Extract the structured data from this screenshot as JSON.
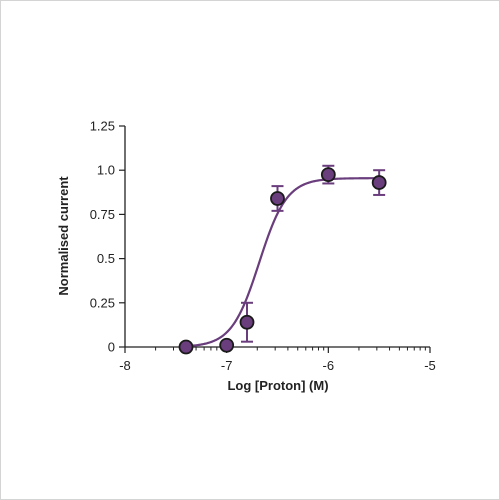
{
  "chart_data": {
    "type": "scatter",
    "xlabel": "Log [Proton] (M)",
    "ylabel": "Normalised current",
    "xlim": [
      -8,
      -5
    ],
    "ylim": [
      0,
      1.25
    ],
    "x_ticks": [
      "-8",
      "-7",
      "-6",
      "-5"
    ],
    "y_ticks": [
      "0",
      "0.25",
      "0.5",
      "0.75",
      "1.0",
      "1.25"
    ],
    "x_scale": "log-concentration",
    "grid": false,
    "series": [
      {
        "points": [
          {
            "x": -7.4,
            "y": 0.0,
            "err": 0.0
          },
          {
            "x": -7.0,
            "y": 0.01,
            "err": 0.0
          },
          {
            "x": -6.8,
            "y": 0.14,
            "err": 0.11
          },
          {
            "x": -6.5,
            "y": 0.84,
            "err": 0.07
          },
          {
            "x": -6.0,
            "y": 0.975,
            "err": 0.05
          },
          {
            "x": -5.5,
            "y": 0.93,
            "err": 0.07
          }
        ],
        "fit": {
          "model": "hill",
          "bottom": 0.0,
          "top": 0.955,
          "logEC50": -6.68,
          "hill_slope": 3.2
        }
      }
    ],
    "colors": {
      "series": "#6a3d7d",
      "marker_fill": "#6a3d7d",
      "marker_edge": "#1a1a1a",
      "axis": "#222222"
    }
  }
}
